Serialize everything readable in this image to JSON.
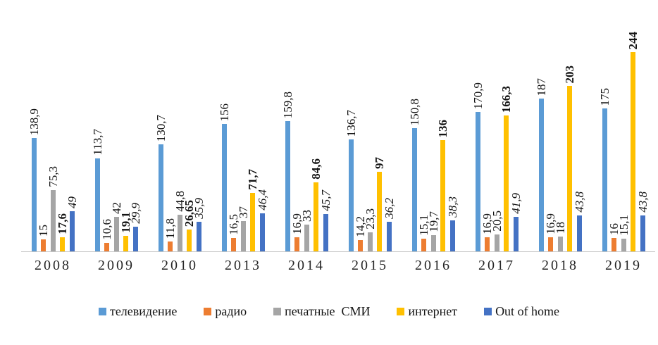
{
  "chart_data": {
    "type": "bar",
    "title": "",
    "xlabel": "",
    "ylabel": "",
    "ylim": [
      0,
      250
    ],
    "y_axis_visible": false,
    "grid": false,
    "legend_position": "bottom",
    "data_labels": "rotated-90-above-bars",
    "decimal_separator": ",",
    "categories": [
      "2008",
      "2009",
      "2010",
      "2013",
      "2014",
      "2015",
      "2016",
      "2017",
      "2018",
      "2019"
    ],
    "series": [
      {
        "key": "tv",
        "name": "телевидение",
        "legend_label": "телевидение",
        "color": "#5B9BD5",
        "label_style": "normal",
        "values": [
          138.9,
          113.7,
          130.7,
          156,
          159.8,
          136.7,
          150.8,
          170.9,
          187,
          175
        ],
        "labels": [
          "138,9",
          "113,7",
          "130,7",
          "156",
          "159,8",
          "136,7",
          "150,8",
          "170,9",
          "187",
          "175"
        ]
      },
      {
        "key": "radio",
        "name": "радио",
        "legend_label": "радио",
        "color": "#ED7D31",
        "label_style": "normal",
        "values": [
          15,
          10.6,
          11.8,
          16.5,
          16.9,
          14.2,
          15.1,
          16.9,
          16.9,
          16
        ],
        "labels": [
          "15",
          "10,6",
          "11,8",
          "16,5",
          "16,9",
          "14,2",
          "15,1",
          "16,9",
          "16,9",
          "16"
        ]
      },
      {
        "key": "print",
        "name": "печатные СМИ",
        "legend_label": "печатные  СМИ",
        "color": "#A5A5A5",
        "label_style": "normal",
        "values": [
          75.3,
          42,
          44.8,
          37,
          33,
          23.3,
          19.7,
          20.5,
          18,
          15.1
        ],
        "labels": [
          "75,3",
          "42",
          "44,8",
          "37",
          "33",
          "23,3",
          "19,7",
          "20,5",
          "18",
          "15,1"
        ]
      },
      {
        "key": "internet",
        "name": "интернет",
        "legend_label": "интернет",
        "color": "#FFC000",
        "label_style": "bold",
        "values": [
          17.6,
          19.1,
          26.65,
          71.7,
          84.6,
          97,
          136,
          166.3,
          203,
          244
        ],
        "labels": [
          "17,6",
          "19,1",
          "26,65",
          "71,7",
          "84,6",
          "97",
          "136",
          "166,3",
          "203",
          "244"
        ]
      },
      {
        "key": "out-of-home",
        "name": "Out of home",
        "legend_label": "Out of home",
        "color": "#4472C4",
        "label_style": "italic",
        "values": [
          49,
          29.9,
          35.9,
          46.4,
          45.7,
          36.2,
          38.3,
          41.9,
          43.8,
          43.8
        ],
        "labels": [
          "49",
          "29,9",
          "35,9",
          "46,4",
          "45,7",
          "36,2",
          "38,3",
          "41,9",
          "43,8",
          "43,8"
        ]
      }
    ]
  }
}
